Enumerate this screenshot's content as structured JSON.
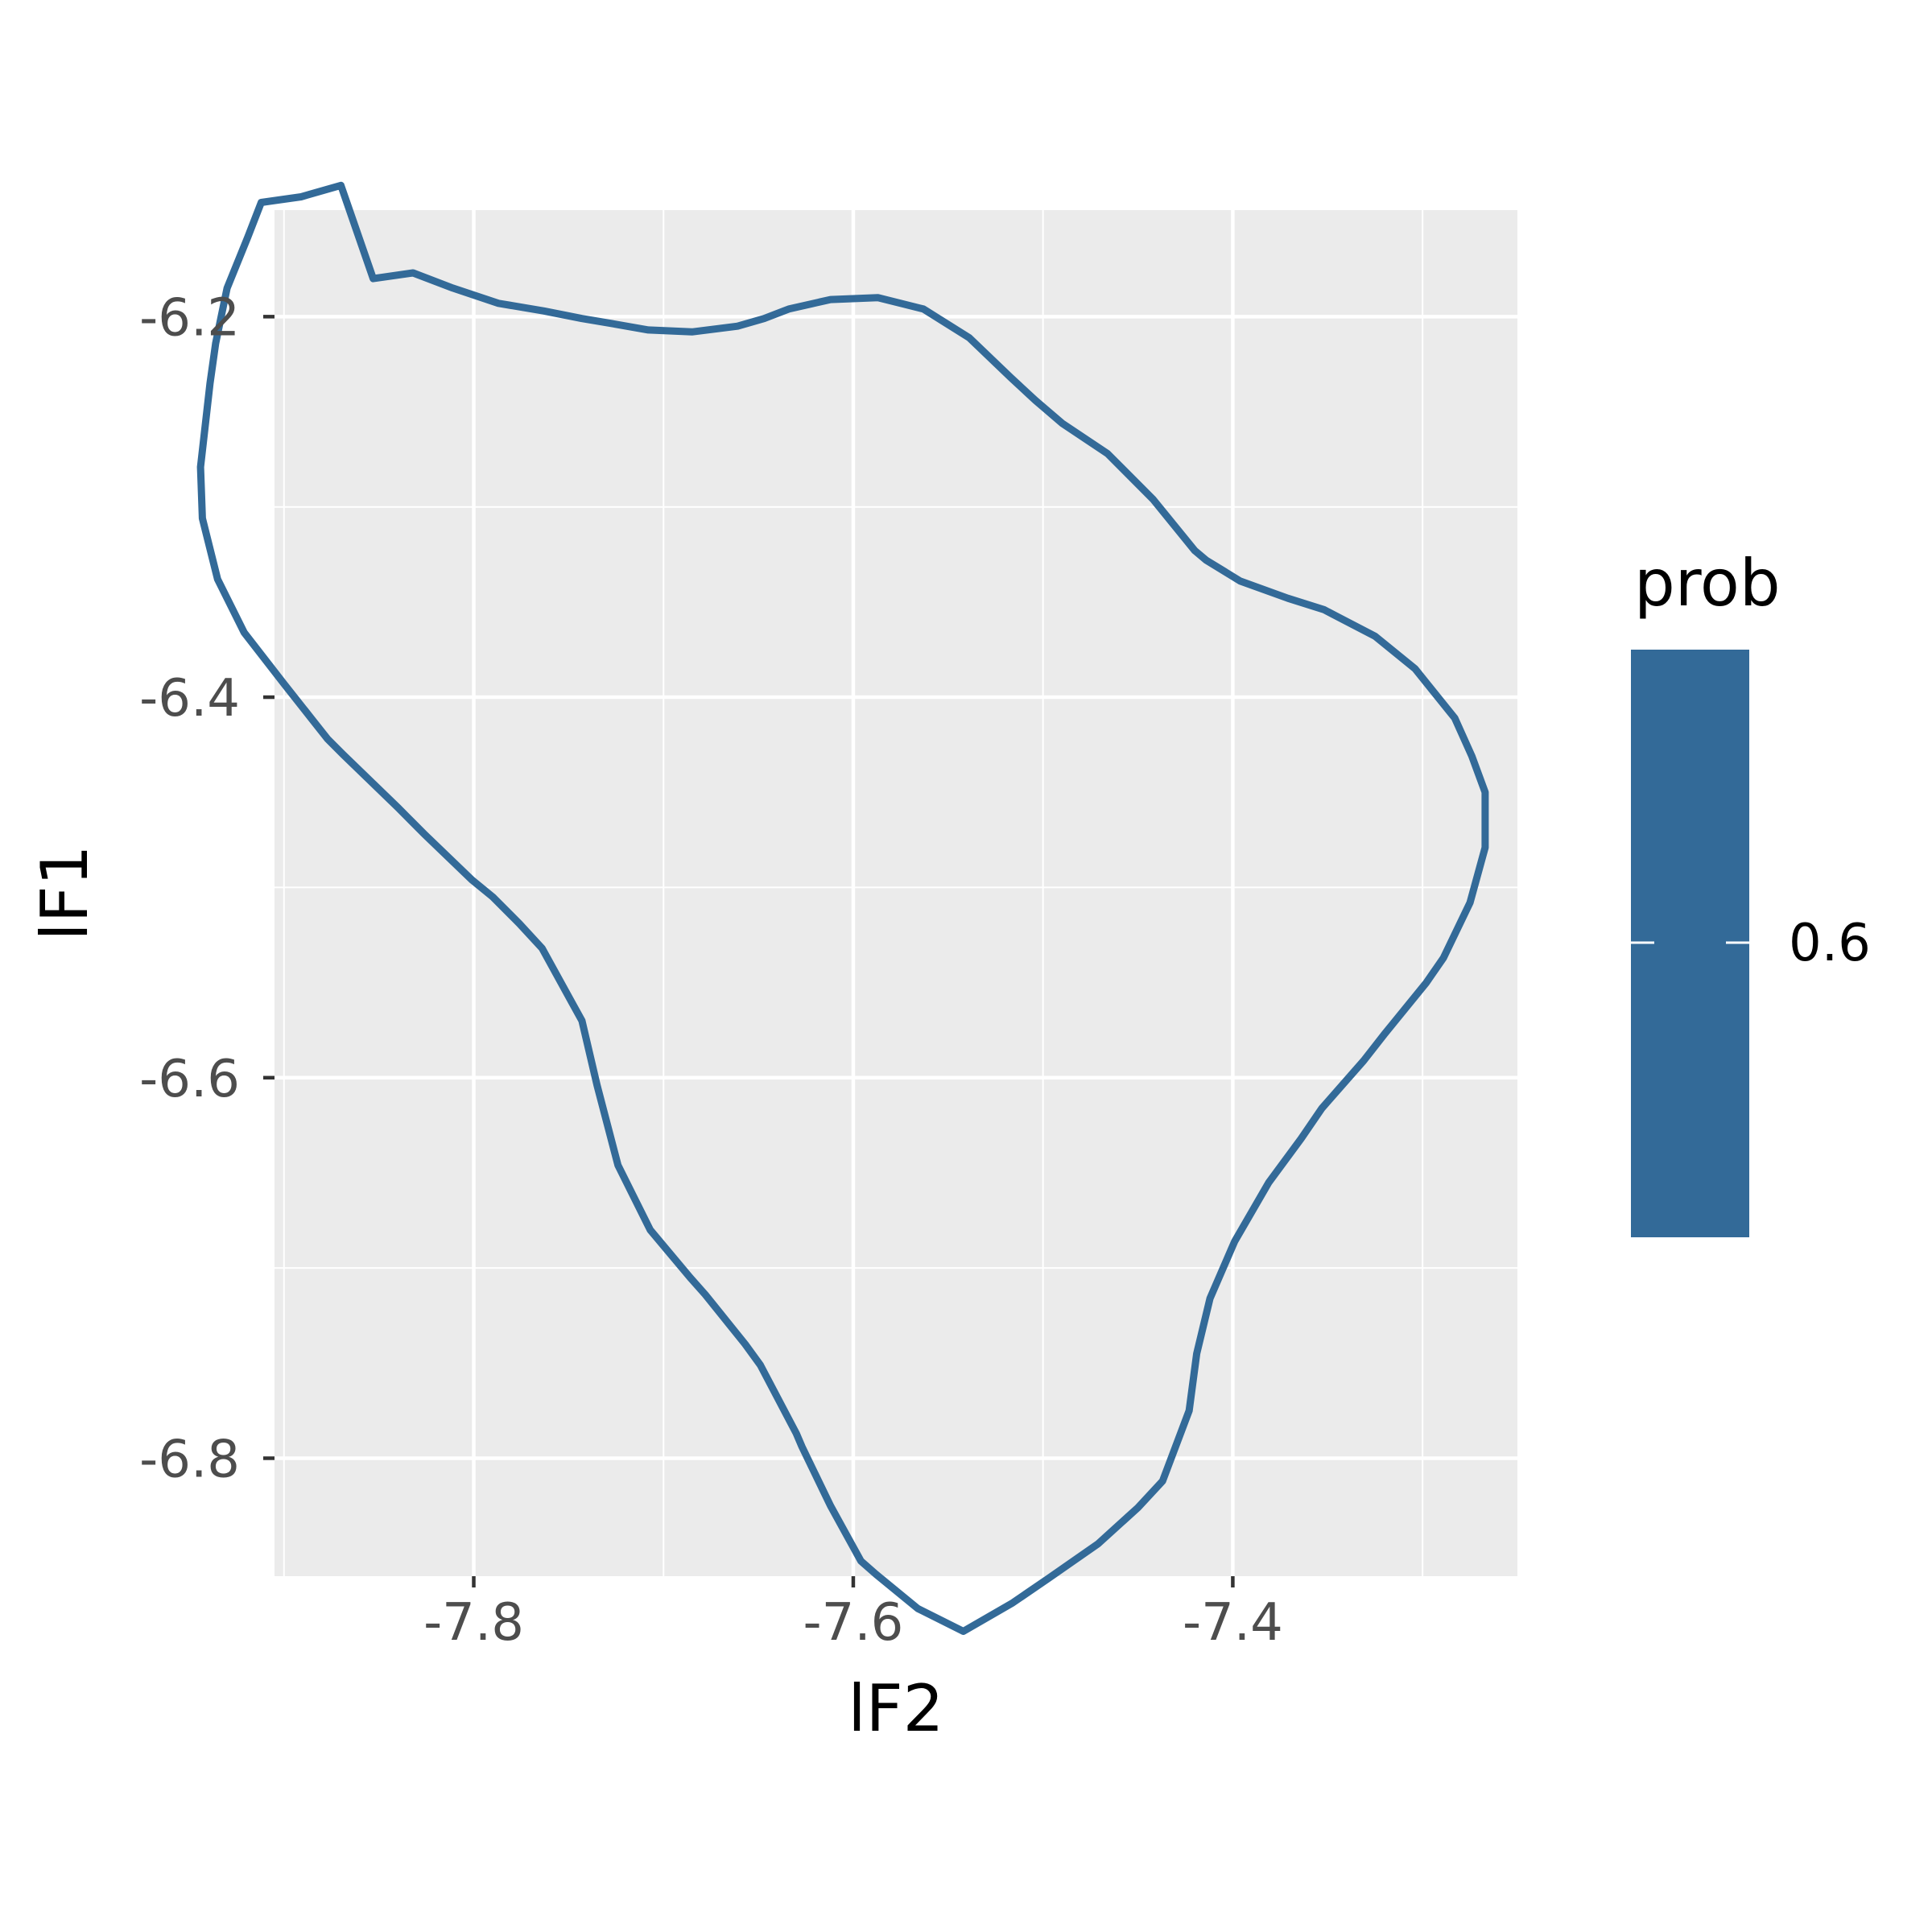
{
  "chart_data": {
    "type": "line",
    "xlabel": "lF2",
    "ylabel": "lF1",
    "xlim": [
      -7.905,
      -7.25
    ],
    "ylim": [
      -6.862,
      -6.144
    ],
    "x_ticks": [
      -7.8,
      -7.6,
      -7.4
    ],
    "x_tick_labels": [
      "-7.8",
      "-7.6",
      "-7.4"
    ],
    "y_ticks": [
      -6.2,
      -6.4,
      -6.6,
      -6.8
    ],
    "y_tick_labels": [
      "-6.2",
      "-6.4",
      "-6.6",
      "-6.8"
    ],
    "grid": true,
    "legend_position": "right",
    "legend": {
      "title": "prob",
      "label": "0.6"
    },
    "colors": {
      "contour": "#336a98",
      "panel": "#ebebeb",
      "grid": "#ffffff",
      "tick_text": "#4d4d4d"
    },
    "series": [
      {
        "level": 0.6,
        "closed": true,
        "points": [
          [
            -7.853,
            -6.18
          ],
          [
            -7.832,
            -6.177
          ],
          [
            -7.811,
            -6.185
          ],
          [
            -7.787,
            -6.193
          ],
          [
            -7.763,
            -6.197
          ],
          [
            -7.743,
            -6.201
          ],
          [
            -7.731,
            -6.203
          ],
          [
            -7.708,
            -6.207
          ],
          [
            -7.685,
            -6.208
          ],
          [
            -7.661,
            -6.205
          ],
          [
            -7.647,
            -6.201
          ],
          [
            -7.634,
            -6.196
          ],
          [
            -7.612,
            -6.191
          ],
          [
            -7.587,
            -6.19
          ],
          [
            -7.563,
            -6.196
          ],
          [
            -7.539,
            -6.211
          ],
          [
            -7.517,
            -6.232
          ],
          [
            -7.504,
            -6.244
          ],
          [
            -7.49,
            -6.256
          ],
          [
            -7.466,
            -6.272
          ],
          [
            -7.442,
            -6.296
          ],
          [
            -7.42,
            -6.323
          ],
          [
            -7.414,
            -6.328
          ],
          [
            -7.396,
            -6.339
          ],
          [
            -7.371,
            -6.348
          ],
          [
            -7.352,
            -6.354
          ],
          [
            -7.325,
            -6.368
          ],
          [
            -7.304,
            -6.385
          ],
          [
            -7.283,
            -6.411
          ],
          [
            -7.274,
            -6.431
          ],
          [
            -7.267,
            -6.45
          ],
          [
            -7.267,
            -6.479
          ],
          [
            -7.275,
            -6.508
          ],
          [
            -7.289,
            -6.537
          ],
          [
            -7.298,
            -6.55
          ],
          [
            -7.32,
            -6.577
          ],
          [
            -7.331,
            -6.591
          ],
          [
            -7.353,
            -6.616
          ],
          [
            -7.364,
            -6.632
          ],
          [
            -7.381,
            -6.655
          ],
          [
            -7.399,
            -6.686
          ],
          [
            -7.412,
            -6.716
          ],
          [
            -7.419,
            -6.745
          ],
          [
            -7.423,
            -6.775
          ],
          [
            -7.437,
            -6.812
          ],
          [
            -7.45,
            -6.826
          ],
          [
            -7.471,
            -6.845
          ],
          [
            -7.497,
            -6.863
          ],
          [
            -7.516,
            -6.876
          ],
          [
            -7.542,
            -6.891
          ],
          [
            -7.566,
            -6.879
          ],
          [
            -7.588,
            -6.861
          ],
          [
            -7.596,
            -6.854
          ],
          [
            -7.612,
            -6.825
          ],
          [
            -7.627,
            -6.794
          ],
          [
            -7.63,
            -6.787
          ],
          [
            -7.649,
            -6.751
          ],
          [
            -7.657,
            -6.74
          ],
          [
            -7.678,
            -6.714
          ],
          [
            -7.686,
            -6.705
          ],
          [
            -7.707,
            -6.68
          ],
          [
            -7.716,
            -6.662
          ],
          [
            -7.724,
            -6.646
          ],
          [
            -7.735,
            -6.604
          ],
          [
            -7.743,
            -6.57
          ],
          [
            -7.748,
            -6.561
          ],
          [
            -7.764,
            -6.532
          ],
          [
            -7.776,
            -6.519
          ],
          [
            -7.79,
            -6.505
          ],
          [
            -7.801,
            -6.496
          ],
          [
            -7.826,
            -6.472
          ],
          [
            -7.84,
            -6.458
          ],
          [
            -7.869,
            -6.43
          ],
          [
            -7.877,
            -6.422
          ],
          [
            -7.9,
            -6.393
          ],
          [
            -7.921,
            -6.366
          ],
          [
            -7.935,
            -6.338
          ],
          [
            -7.943,
            -6.306
          ],
          [
            -7.944,
            -6.279
          ],
          [
            -7.939,
            -6.235
          ],
          [
            -7.936,
            -6.214
          ],
          [
            -7.93,
            -6.185
          ],
          [
            -7.919,
            -6.158
          ],
          [
            -7.912,
            -6.14
          ],
          [
            -7.891,
            -6.137
          ],
          [
            -7.87,
            -6.131
          ],
          [
            -7.853,
            -6.18
          ]
        ]
      }
    ]
  }
}
